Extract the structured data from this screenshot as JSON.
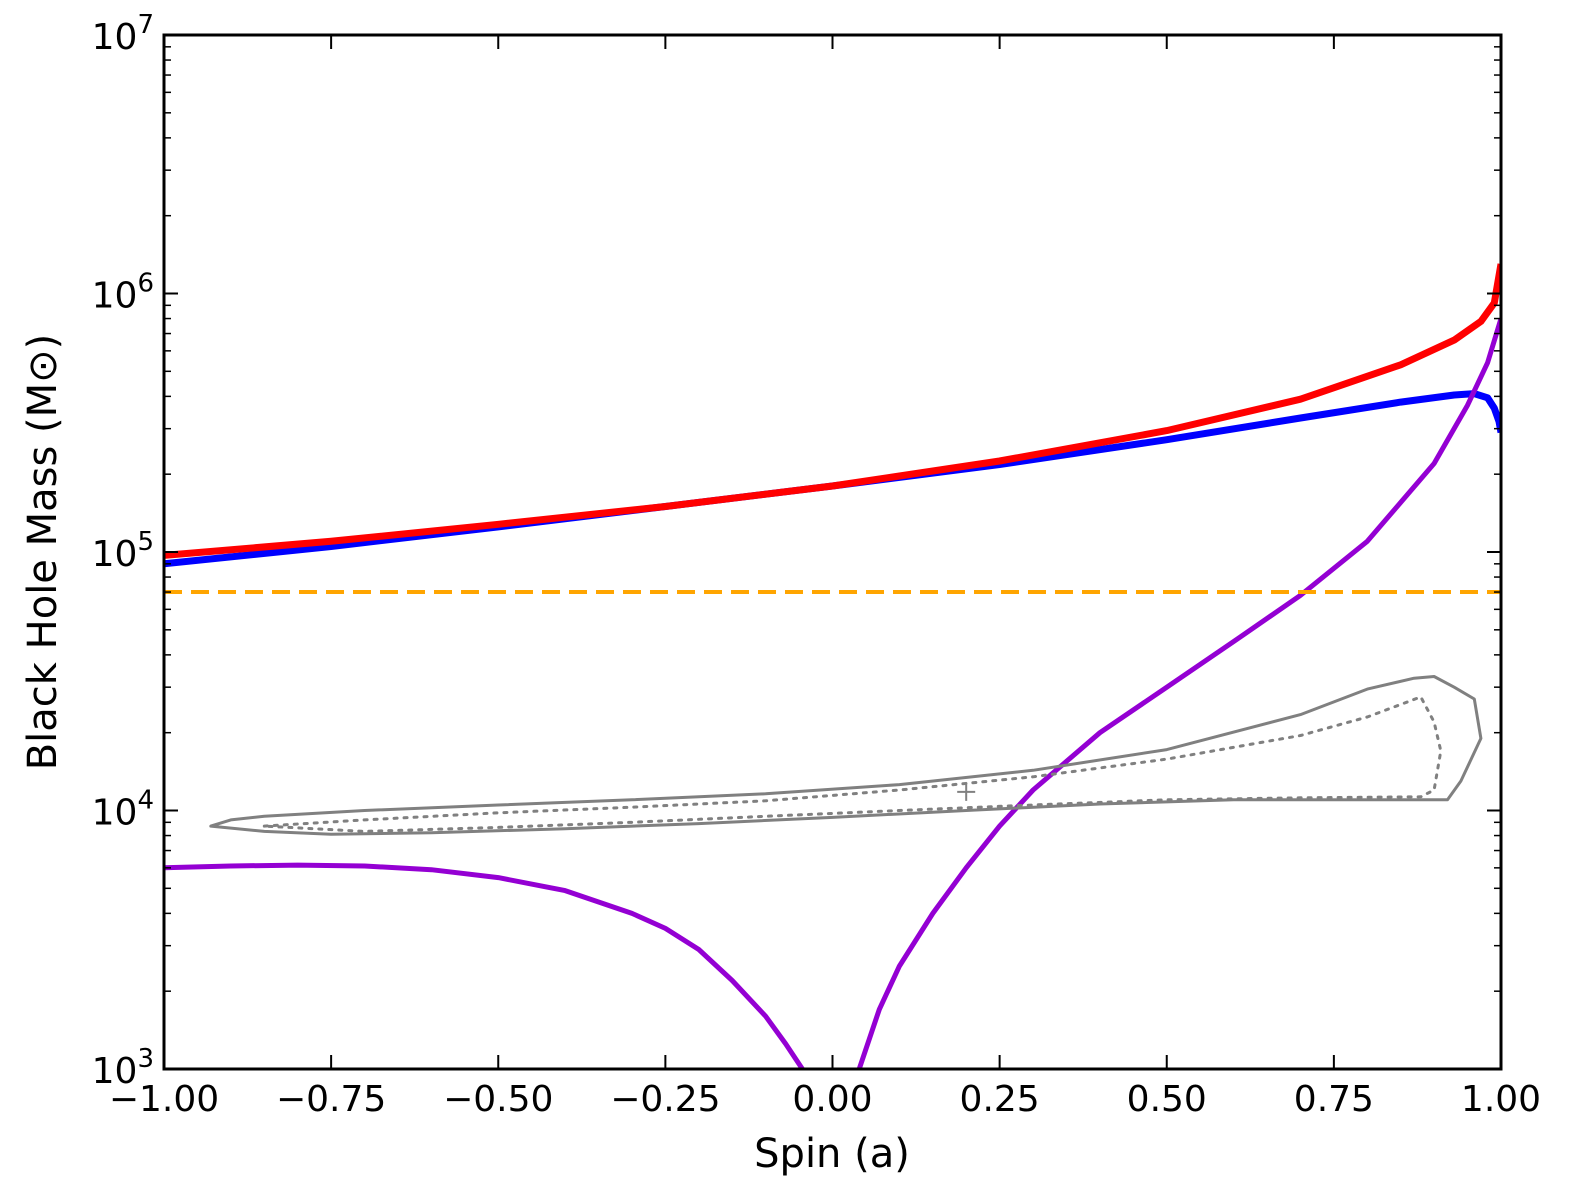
{
  "chart_data": {
    "type": "line",
    "xlabel": "Spin (a)",
    "ylabel": "Black Hole Mass (M⊙)",
    "xlim": [
      -1.0,
      1.0
    ],
    "ylim": [
      1000,
      10000000
    ],
    "yscale": "log",
    "grid": false,
    "x_ticks": [
      -1.0,
      -0.75,
      -0.5,
      -0.25,
      0.0,
      0.25,
      0.5,
      0.75,
      1.0
    ],
    "x_tick_labels": [
      "−1.00",
      "−0.75",
      "−0.50",
      "−0.25",
      "0.00",
      "0.25",
      "0.50",
      "0.75",
      "1.00"
    ],
    "y_ticks": [
      1000,
      10000,
      100000,
      1000000,
      10000000
    ],
    "y_tick_labels": [
      {
        "base": "10",
        "exp": "3"
      },
      {
        "base": "10",
        "exp": "4"
      },
      {
        "base": "10",
        "exp": "5"
      },
      {
        "base": "10",
        "exp": "6"
      },
      {
        "base": "10",
        "exp": "7"
      }
    ],
    "series": [
      {
        "color": "#0000ff",
        "style": "solid",
        "x": [
          -1.0,
          -0.75,
          -0.5,
          -0.25,
          0.0,
          0.25,
          0.5,
          0.7,
          0.85,
          0.93,
          0.96,
          0.98,
          0.99,
          0.997,
          1.0
        ],
        "y": [
          90000,
          105000,
          125000,
          150000,
          180000,
          218000,
          272000,
          330000,
          380000,
          405000,
          410000,
          395000,
          360000,
          320000,
          290000
        ]
      },
      {
        "color": "#ff0000",
        "style": "solid",
        "x": [
          -1.0,
          -0.75,
          -0.5,
          -0.25,
          0.0,
          0.25,
          0.5,
          0.7,
          0.85,
          0.93,
          0.97,
          0.99,
          1.0
        ],
        "y": [
          97000,
          110000,
          128000,
          150000,
          180000,
          225000,
          295000,
          390000,
          530000,
          660000,
          780000,
          920000,
          1300000
        ]
      },
      {
        "color": "#9400d3",
        "style": "solid",
        "x": [
          -1.0,
          -0.9,
          -0.8,
          -0.7,
          -0.6,
          -0.5,
          -0.4,
          -0.3,
          -0.25,
          -0.2,
          -0.15,
          -0.1,
          -0.07,
          -0.045
        ],
        "y": [
          6000,
          6100,
          6150,
          6100,
          5900,
          5500,
          4900,
          4000,
          3500,
          2900,
          2200,
          1600,
          1250,
          1000
        ]
      },
      {
        "color": "#9400d3",
        "style": "solid",
        "x": [
          0.04,
          0.07,
          0.1,
          0.15,
          0.2,
          0.25,
          0.3,
          0.4,
          0.5,
          0.6,
          0.7,
          0.8,
          0.9,
          0.95,
          0.98,
          1.0
        ],
        "y": [
          1000,
          1700,
          2500,
          4000,
          6000,
          8700,
          12000,
          20000,
          30000,
          45000,
          68000,
          110000,
          220000,
          370000,
          540000,
          800000
        ]
      },
      {
        "color": "#ffa500",
        "style": "dashed",
        "x": [
          -1.0,
          1.0
        ],
        "y": [
          70000,
          70000
        ]
      },
      {
        "color": "#808080",
        "style": "solid",
        "closed": true,
        "x": [
          -0.93,
          -0.9,
          -0.85,
          -0.7,
          -0.5,
          -0.3,
          -0.1,
          0.1,
          0.3,
          0.5,
          0.7,
          0.8,
          0.87,
          0.9,
          0.93,
          0.96,
          0.97,
          0.94,
          0.92,
          0.8,
          0.6,
          0.4,
          0.2,
          0.0,
          -0.2,
          -0.4,
          -0.6,
          -0.75,
          -0.85,
          -0.93
        ],
        "y": [
          8700,
          9200,
          9500,
          10000,
          10500,
          11000,
          11600,
          12600,
          14300,
          17200,
          23500,
          29500,
          32500,
          33000,
          30000,
          27000,
          19000,
          13000,
          11000,
          11000,
          11000,
          10600,
          10000,
          9400,
          8900,
          8500,
          8200,
          8100,
          8300,
          8700
        ]
      },
      {
        "color": "#808080",
        "style": "dotted",
        "closed": true,
        "x": [
          -0.85,
          -0.7,
          -0.5,
          -0.3,
          -0.1,
          0.1,
          0.3,
          0.5,
          0.7,
          0.8,
          0.88,
          0.9,
          0.91,
          0.9,
          0.88,
          0.7,
          0.5,
          0.3,
          0.1,
          -0.1,
          -0.3,
          -0.5,
          -0.7,
          -0.85
        ],
        "y": [
          8700,
          9200,
          9800,
          10300,
          10900,
          12000,
          13500,
          15800,
          19500,
          23000,
          27500,
          22000,
          17000,
          12000,
          11300,
          11200,
          11000,
          10500,
          10000,
          9500,
          9000,
          8600,
          8300,
          8700
        ]
      }
    ],
    "marker": {
      "x": 0.2,
      "y": 11800,
      "symbol": "+",
      "color": "#808080"
    }
  }
}
